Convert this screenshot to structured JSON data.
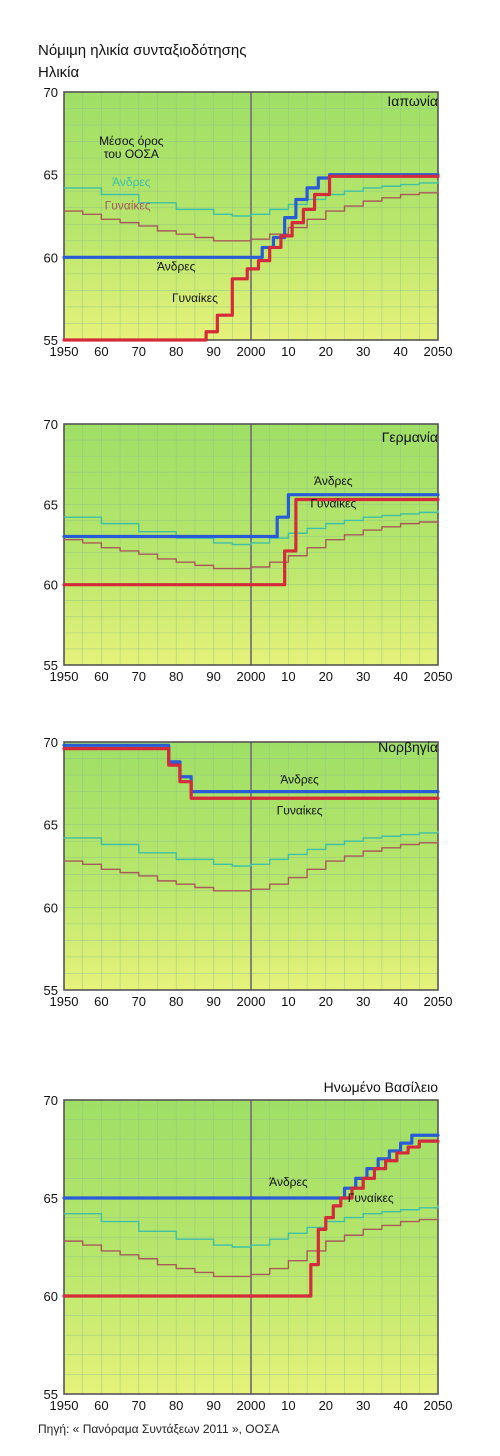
{
  "header": {
    "title": "Νόμιμη ηλικία συνταξιοδότησης",
    "ylabel": "Ηλικία"
  },
  "source": "Πηγή: « Πανόραμα Συντάξεων 2011 », ΟΟΣΑ",
  "colors": {
    "men": "#2a5bd7",
    "women": "#d42a3a",
    "oecd_men": "#3fbfa8",
    "oecd_women": "#a85a5a",
    "plot_bg": "#9fdf66",
    "plot_bg_light": "#e6f27a",
    "grid": "#8fbf8f",
    "frame": "#555555",
    "midline": "#777777"
  },
  "chart_data": [
    {
      "type": "line",
      "country": "Ιαπωνία",
      "xlim": [
        1950,
        2050
      ],
      "ylim": [
        55,
        70
      ],
      "xticks": [
        "1950",
        "60",
        "70",
        "80",
        "90",
        "2000",
        "10",
        "20",
        "30",
        "40",
        "2050"
      ],
      "yticks": [
        "55",
        "60",
        "65",
        "70"
      ],
      "annotations": {
        "oecd": [
          "Μέσος όρος",
          "του ΟΟΣΑ"
        ],
        "oecd_men": "Άνδρες",
        "oecd_women": "Γυναίκες",
        "men": "Άνδρες",
        "women": "Γυναίκες"
      },
      "series": [
        {
          "name": "Άνδρες",
          "role": "men",
          "x": [
            1950,
            2000,
            2003,
            2006,
            2009,
            2012,
            2015,
            2018,
            2021,
            2050
          ],
          "y": [
            60,
            60,
            60.6,
            61.2,
            62.4,
            63.5,
            64.2,
            64.8,
            65,
            65
          ]
        },
        {
          "name": "Γυναίκες",
          "role": "women",
          "x": [
            1950,
            1985,
            1988,
            1991,
            1995,
            1999,
            2002,
            2005,
            2008,
            2011,
            2014,
            2017,
            2021,
            2050
          ],
          "y": [
            55,
            55,
            55.5,
            56.5,
            58.7,
            59.3,
            59.8,
            60.6,
            61.3,
            62.1,
            62.9,
            63.8,
            64.9,
            64.9
          ]
        },
        {
          "name": "Άνδρες",
          "role": "oecd_men",
          "x": [
            1950,
            1960,
            1970,
            1980,
            1990,
            1995,
            2000,
            2005,
            2010,
            2015,
            2020,
            2025,
            2030,
            2035,
            2040,
            2045,
            2050
          ],
          "y": [
            64.2,
            63.8,
            63.3,
            62.9,
            62.6,
            62.5,
            62.6,
            62.9,
            63.2,
            63.5,
            63.8,
            64,
            64.2,
            64.3,
            64.4,
            64.5,
            64.6
          ]
        },
        {
          "name": "Γυναίκες",
          "role": "oecd_women",
          "x": [
            1950,
            1955,
            1960,
            1965,
            1970,
            1975,
            1980,
            1985,
            1990,
            1995,
            2000,
            2005,
            2010,
            2015,
            2020,
            2025,
            2030,
            2035,
            2040,
            2045,
            2050
          ],
          "y": [
            62.8,
            62.6,
            62.3,
            62.1,
            61.9,
            61.6,
            61.4,
            61.2,
            61,
            61,
            61.1,
            61.4,
            61.8,
            62.3,
            62.8,
            63.1,
            63.4,
            63.6,
            63.8,
            63.9,
            64
          ]
        }
      ]
    },
    {
      "type": "line",
      "country": "Γερμανία",
      "xlim": [
        1950,
        2050
      ],
      "ylim": [
        55,
        70
      ],
      "xticks": [
        "1950",
        "60",
        "70",
        "80",
        "90",
        "2000",
        "10",
        "20",
        "30",
        "40",
        "2050"
      ],
      "yticks": [
        "55",
        "60",
        "65",
        "70"
      ],
      "annotations": {
        "men": "Άνδρες",
        "women": "Γυναίκες"
      },
      "series": [
        {
          "name": "Άνδρες",
          "role": "men",
          "x": [
            1950,
            2005,
            2007,
            2010,
            2050
          ],
          "y": [
            63,
            63,
            64.2,
            65.6,
            65.6
          ]
        },
        {
          "name": "Γυναίκες",
          "role": "women",
          "x": [
            1950,
            2005,
            2009,
            2012,
            2050
          ],
          "y": [
            60,
            60,
            62.1,
            65.3,
            65.3
          ]
        },
        {
          "name": "Άνδρες",
          "role": "oecd_men",
          "x": [
            1950,
            1960,
            1970,
            1980,
            1990,
            1995,
            2000,
            2005,
            2010,
            2015,
            2020,
            2025,
            2030,
            2035,
            2040,
            2045,
            2050
          ],
          "y": [
            64.2,
            63.8,
            63.3,
            62.9,
            62.6,
            62.5,
            62.6,
            62.9,
            63.2,
            63.5,
            63.8,
            64,
            64.2,
            64.3,
            64.4,
            64.5,
            64.6
          ]
        },
        {
          "name": "Γυναίκες",
          "role": "oecd_women",
          "x": [
            1950,
            1955,
            1960,
            1965,
            1970,
            1975,
            1980,
            1985,
            1990,
            1995,
            2000,
            2005,
            2010,
            2015,
            2020,
            2025,
            2030,
            2035,
            2040,
            2045,
            2050
          ],
          "y": [
            62.8,
            62.6,
            62.3,
            62.1,
            61.9,
            61.6,
            61.4,
            61.2,
            61,
            61,
            61.1,
            61.4,
            61.8,
            62.3,
            62.8,
            63.1,
            63.4,
            63.6,
            63.8,
            63.9,
            64
          ]
        }
      ]
    },
    {
      "type": "line",
      "country": "Νορβηγία",
      "xlim": [
        1950,
        2050
      ],
      "ylim": [
        55,
        70
      ],
      "xticks": [
        "1950",
        "60",
        "70",
        "80",
        "90",
        "2000",
        "10",
        "20",
        "30",
        "40",
        "2050"
      ],
      "yticks": [
        "55",
        "60",
        "65",
        "70"
      ],
      "annotations": {
        "men": "Άνδρες",
        "women": "Γυναίκες"
      },
      "series": [
        {
          "name": "Άνδρες",
          "role": "men",
          "x": [
            1950,
            1975,
            1978,
            1981,
            1984,
            2050
          ],
          "y": [
            69.8,
            69.8,
            68.8,
            67.9,
            67,
            67
          ]
        },
        {
          "name": "Γυναίκες",
          "role": "women",
          "x": [
            1950,
            1975,
            1978,
            1981,
            1984,
            2050
          ],
          "y": [
            69.6,
            69.6,
            68.6,
            67.6,
            66.6,
            66.6
          ]
        },
        {
          "name": "Άνδρες",
          "role": "oecd_men",
          "x": [
            1950,
            1960,
            1970,
            1980,
            1990,
            1995,
            2000,
            2005,
            2010,
            2015,
            2020,
            2025,
            2030,
            2035,
            2040,
            2045,
            2050
          ],
          "y": [
            64.2,
            63.8,
            63.3,
            62.9,
            62.6,
            62.5,
            62.6,
            62.9,
            63.2,
            63.5,
            63.8,
            64,
            64.2,
            64.3,
            64.4,
            64.5,
            64.6
          ]
        },
        {
          "name": "Γυναίκες",
          "role": "oecd_women",
          "x": [
            1950,
            1955,
            1960,
            1965,
            1970,
            1975,
            1980,
            1985,
            1990,
            1995,
            2000,
            2005,
            2010,
            2015,
            2020,
            2025,
            2030,
            2035,
            2040,
            2045,
            2050
          ],
          "y": [
            62.8,
            62.6,
            62.3,
            62.1,
            61.9,
            61.6,
            61.4,
            61.2,
            61,
            61,
            61.1,
            61.4,
            61.8,
            62.3,
            62.8,
            63.1,
            63.4,
            63.6,
            63.8,
            63.9,
            64
          ]
        }
      ]
    },
    {
      "type": "line",
      "country": "Ηνωμένο Βασίλειο",
      "xlim": [
        1950,
        2050
      ],
      "ylim": [
        55,
        70
      ],
      "xticks": [
        "1950",
        "60",
        "70",
        "80",
        "90",
        "2000",
        "10",
        "20",
        "30",
        "40",
        "2050"
      ],
      "yticks": [
        "55",
        "60",
        "65",
        "70"
      ],
      "annotations": {
        "men": "Άνδρες",
        "women": "Γυναίκες"
      },
      "series": [
        {
          "name": "Άνδρες",
          "role": "men",
          "x": [
            1950,
            2022,
            2025,
            2028,
            2031,
            2034,
            2037,
            2040,
            2043,
            2050
          ],
          "y": [
            65,
            65,
            65.5,
            66,
            66.5,
            67,
            67.4,
            67.8,
            68.2,
            68.2
          ]
        },
        {
          "name": "Γυναίκες",
          "role": "women",
          "x": [
            1950,
            2014,
            2016,
            2018,
            2020,
            2022,
            2024,
            2027,
            2030,
            2033,
            2036,
            2039,
            2042,
            2045,
            2050
          ],
          "y": [
            60,
            60,
            61.6,
            63.4,
            64,
            64.6,
            65,
            65.5,
            66,
            66.5,
            66.9,
            67.3,
            67.6,
            67.9,
            67.9
          ]
        },
        {
          "name": "Άνδρες",
          "role": "oecd_men",
          "x": [
            1950,
            1960,
            1970,
            1980,
            1990,
            1995,
            2000,
            2005,
            2010,
            2015,
            2020,
            2025,
            2030,
            2035,
            2040,
            2045,
            2050
          ],
          "y": [
            64.2,
            63.8,
            63.3,
            62.9,
            62.6,
            62.5,
            62.6,
            62.9,
            63.2,
            63.5,
            63.8,
            64,
            64.2,
            64.3,
            64.4,
            64.5,
            64.6
          ]
        },
        {
          "name": "Γυναίκες",
          "role": "oecd_women",
          "x": [
            1950,
            1955,
            1960,
            1965,
            1970,
            1975,
            1980,
            1985,
            1990,
            1995,
            2000,
            2005,
            2010,
            2015,
            2020,
            2025,
            2030,
            2035,
            2040,
            2045,
            2050
          ],
          "y": [
            62.8,
            62.6,
            62.3,
            62.1,
            61.9,
            61.6,
            61.4,
            61.2,
            61,
            61,
            61.1,
            61.4,
            61.8,
            62.3,
            62.8,
            63.1,
            63.4,
            63.6,
            63.8,
            63.9,
            64
          ]
        }
      ]
    }
  ]
}
